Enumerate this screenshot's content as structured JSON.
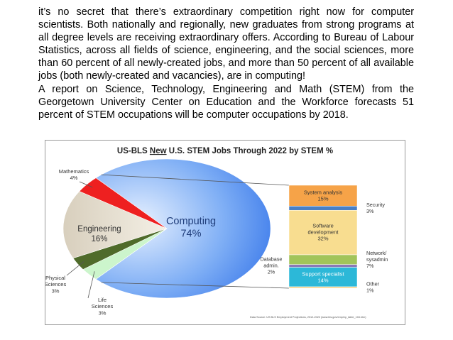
{
  "document": {
    "paragraphs": [
      "it’s no secret that there’s extraordinary competition right now for computer scientists. Both nationally and regionally, new graduates from strong programs at all degree levels are receiving extraordinary offers. According to Bureau of Labour Statistics, across all fields of science, engineering, and the social sciences, more than 60 percent of all newly-created jobs, and more than 50 percent of all available jobs (both newly-created and vacancies), are in computing!",
      "A report on Science, Technology, Engineering and Math (STEM) from the Georgetown University Center on Education and the Workforce forecasts 51 percent of STEM occupations will be computer occupations by 2018."
    ]
  },
  "chart_data": {
    "type": "pie",
    "title": "US-BLS New U.S. STEM Jobs Through 2022 by STEM %",
    "title_parts": [
      "US-BLS ",
      "New",
      " U.S. STEM Jobs Through 2022 by STEM %"
    ],
    "source": "Data Source: US BLS Employment Projections, 2012-2022 (www.bls.gov/emp/ep_table_104.htm)",
    "slices": [
      {
        "name": "Computing",
        "value": 74,
        "label": "74%",
        "color": "#4a86e8"
      },
      {
        "name": "Life Sciences",
        "value": 3,
        "label": "3%",
        "color": "#ccf5cc"
      },
      {
        "name": "Physical Sciences",
        "value": 3,
        "label": "3%",
        "color": "#4f6b2a"
      },
      {
        "name": "Engineering",
        "value": 16,
        "label": "16%",
        "color": "#ece6d8"
      },
      {
        "name": "Mathematics",
        "value": 4,
        "label": "4%",
        "color": "#ee2020"
      }
    ],
    "breakdown_of": "Computing",
    "breakdown": [
      {
        "name": "System analysis",
        "value": 15,
        "label": "15%",
        "color": "#f6a348"
      },
      {
        "name": "Security",
        "value": 3,
        "label": "3%",
        "color": "#4a7fc4"
      },
      {
        "name": "Software development",
        "value": 32,
        "label": "32%",
        "color": "#f8dd90"
      },
      {
        "name": "Network/ sysadmin",
        "value": 7,
        "label": "7%",
        "color": "#a2c45a"
      },
      {
        "name": "Database admin.",
        "value": 2,
        "label": "2%",
        "color": "#8b78b8"
      },
      {
        "name": "Support specialist",
        "value": 14,
        "label": "14%",
        "color": "#2cb8d8"
      },
      {
        "name": "Other",
        "value": 1,
        "label": "1%",
        "color": "#f8d080"
      }
    ]
  }
}
